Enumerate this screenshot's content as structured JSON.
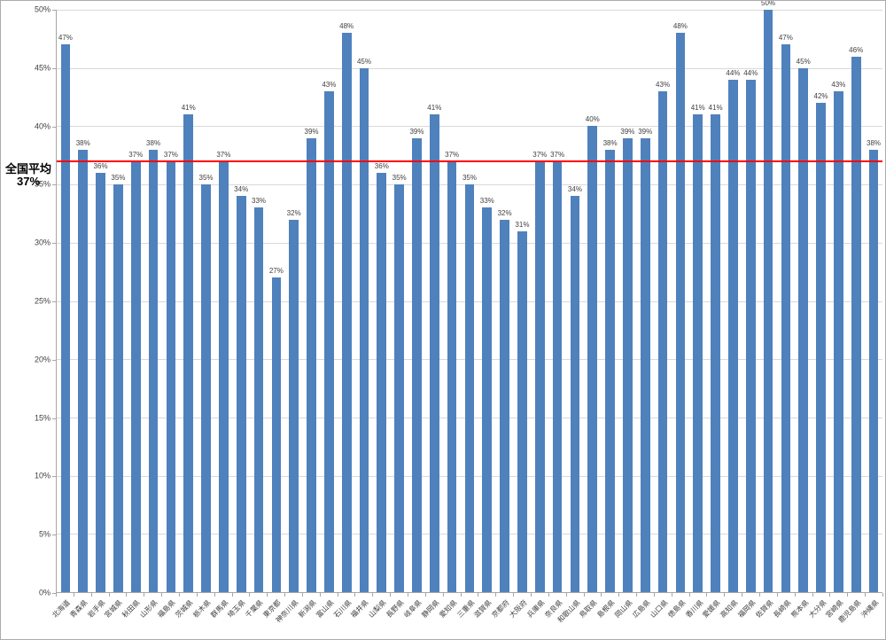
{
  "chart_data": {
    "type": "bar",
    "title": "",
    "categories": [
      "北海道",
      "青森県",
      "岩手県",
      "宮城県",
      "秋田県",
      "山形県",
      "福島県",
      "茨城県",
      "栃木県",
      "群馬県",
      "埼玉県",
      "千葉県",
      "東京都",
      "神奈川県",
      "新潟県",
      "富山県",
      "石川県",
      "福井県",
      "山梨県",
      "長野県",
      "岐阜県",
      "静岡県",
      "愛知県",
      "三重県",
      "滋賀県",
      "京都府",
      "大阪府",
      "兵庫県",
      "奈良県",
      "和歌山県",
      "鳥取県",
      "島根県",
      "岡山県",
      "広島県",
      "山口県",
      "徳島県",
      "香川県",
      "愛媛県",
      "高知県",
      "福岡県",
      "佐賀県",
      "長崎県",
      "熊本県",
      "大分県",
      "宮崎県",
      "鹿児島県",
      "沖縄県"
    ],
    "values": [
      47,
      38,
      36,
      35,
      37,
      38,
      37,
      41,
      35,
      37,
      34,
      33,
      27,
      32,
      39,
      43,
      48,
      45,
      36,
      35,
      39,
      41,
      37,
      35,
      33,
      32,
      31,
      37,
      37,
      34,
      40,
      38,
      39,
      39,
      43,
      48,
      41,
      41,
      44,
      44,
      50,
      47,
      45,
      42,
      43,
      46,
      38
    ],
    "value_label_suffix": "%",
    "ylim": [
      0,
      50
    ],
    "ytick_step": 5,
    "ytick_suffix": "%",
    "grid": true,
    "legend": "none",
    "bar_color": "#4f81bd",
    "gridline_color": "#d9d9d9",
    "axis_color": "#a6a6a6",
    "average_line": {
      "value": 37,
      "color": "#ff0000",
      "label_lines": [
        "全国平均",
        "37%"
      ]
    }
  }
}
